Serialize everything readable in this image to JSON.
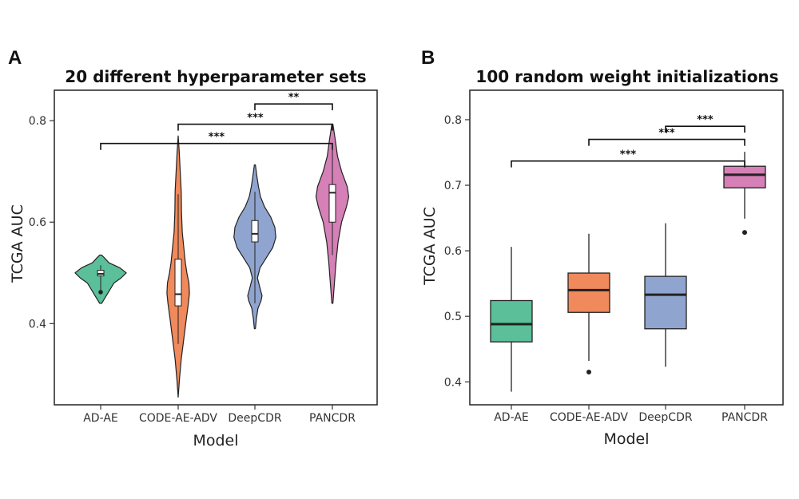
{
  "chart_data": [
    {
      "type": "violin",
      "panel_label": "A",
      "title": "20 different hyperparameter sets",
      "xlabel": "Model",
      "ylabel": "TCGA AUC",
      "ylim": [
        0.24,
        0.86
      ],
      "yticks": [
        0.4,
        0.6,
        0.8
      ],
      "ytick_labels": [
        "0.4",
        "0.6",
        "0.8"
      ],
      "categories": [
        "AD-AE",
        "CODE-AE-ADV",
        "DeepCDR",
        "PANCDR"
      ],
      "colors": [
        "#5BBF9A",
        "#F0895B",
        "#8FA4CF",
        "#D580B6"
      ],
      "groups": [
        {
          "name": "AD-AE",
          "violin_min": 0.44,
          "violin_max": 0.535,
          "density": [
            [
              0.44,
              0.04
            ],
            [
              0.45,
              0.16
            ],
            [
              0.46,
              0.28
            ],
            [
              0.47,
              0.4
            ],
            [
              0.48,
              0.52
            ],
            [
              0.49,
              0.8
            ],
            [
              0.5,
              1.0
            ],
            [
              0.51,
              0.75
            ],
            [
              0.52,
              0.32
            ],
            [
              0.53,
              0.14
            ],
            [
              0.535,
              0.04
            ]
          ],
          "box": {
            "q1": 0.494,
            "median": 0.498,
            "q3": 0.505,
            "whisker_low": 0.465,
            "whisker_high": 0.515
          },
          "outliers": [
            0.462
          ]
        },
        {
          "name": "CODE-AE-ADV",
          "violin_min": 0.255,
          "violin_max": 0.77,
          "density": [
            [
              0.255,
              0.0
            ],
            [
              0.29,
              0.05
            ],
            [
              0.33,
              0.12
            ],
            [
              0.37,
              0.22
            ],
            [
              0.41,
              0.32
            ],
            [
              0.44,
              0.4
            ],
            [
              0.46,
              0.44
            ],
            [
              0.48,
              0.42
            ],
            [
              0.5,
              0.34
            ],
            [
              0.52,
              0.28
            ],
            [
              0.55,
              0.22
            ],
            [
              0.58,
              0.16
            ],
            [
              0.62,
              0.13
            ],
            [
              0.66,
              0.12
            ],
            [
              0.7,
              0.08
            ],
            [
              0.74,
              0.04
            ],
            [
              0.77,
              0.0
            ]
          ],
          "box": {
            "q1": 0.435,
            "median": 0.458,
            "q3": 0.527,
            "whisker_low": 0.36,
            "whisker_high": 0.655
          },
          "outliers": []
        },
        {
          "name": "DeepCDR",
          "violin_min": 0.39,
          "violin_max": 0.713,
          "density": [
            [
              0.39,
              0.02
            ],
            [
              0.41,
              0.06
            ],
            [
              0.43,
              0.12
            ],
            [
              0.445,
              0.24
            ],
            [
              0.455,
              0.28
            ],
            [
              0.47,
              0.2
            ],
            [
              0.49,
              0.1
            ],
            [
              0.51,
              0.2
            ],
            [
              0.53,
              0.45
            ],
            [
              0.55,
              0.7
            ],
            [
              0.57,
              0.82
            ],
            [
              0.59,
              0.78
            ],
            [
              0.61,
              0.62
            ],
            [
              0.63,
              0.38
            ],
            [
              0.65,
              0.22
            ],
            [
              0.67,
              0.14
            ],
            [
              0.69,
              0.08
            ],
            [
              0.713,
              0.02
            ]
          ],
          "box": {
            "q1": 0.561,
            "median": 0.577,
            "q3": 0.603,
            "whisker_low": 0.44,
            "whisker_high": 0.66
          },
          "outliers": []
        },
        {
          "name": "PANCDR",
          "violin_min": 0.44,
          "violin_max": 0.793,
          "density": [
            [
              0.44,
              0.02
            ],
            [
              0.48,
              0.08
            ],
            [
              0.52,
              0.14
            ],
            [
              0.56,
              0.22
            ],
            [
              0.6,
              0.36
            ],
            [
              0.63,
              0.55
            ],
            [
              0.65,
              0.64
            ],
            [
              0.67,
              0.58
            ],
            [
              0.7,
              0.36
            ],
            [
              0.73,
              0.2
            ],
            [
              0.76,
              0.12
            ],
            [
              0.793,
              0.02
            ]
          ],
          "box": {
            "q1": 0.6,
            "median": 0.658,
            "q3": 0.674,
            "whisker_low": 0.535,
            "whisker_high": 0.75
          },
          "outliers": []
        }
      ],
      "comparisons": [
        {
          "from": "DeepCDR",
          "to": "PANCDR",
          "y": 0.833,
          "label": "**"
        },
        {
          "from": "CODE-AE-ADV",
          "to": "PANCDR",
          "y": 0.793,
          "label": "***"
        },
        {
          "from": "AD-AE",
          "to": "PANCDR",
          "y": 0.755,
          "label": "***"
        }
      ]
    },
    {
      "type": "box",
      "panel_label": "B",
      "title": "100 random weight initializations",
      "xlabel": "Model",
      "ylabel": "TCGA AUC",
      "ylim": [
        0.365,
        0.845
      ],
      "yticks": [
        0.4,
        0.5,
        0.6,
        0.7,
        0.8
      ],
      "ytick_labels": [
        "0.4",
        "0.5",
        "0.6",
        "0.7",
        "0.8"
      ],
      "categories": [
        "AD-AE",
        "CODE-AE-ADV",
        "DeepCDR",
        "PANCDR"
      ],
      "colors": [
        "#5BBF9A",
        "#F0895B",
        "#8FA4CF",
        "#D580B6"
      ],
      "groups": [
        {
          "name": "AD-AE",
          "q1": 0.461,
          "median": 0.488,
          "q3": 0.524,
          "whisker_low": 0.385,
          "whisker_high": 0.606,
          "outliers": []
        },
        {
          "name": "CODE-AE-ADV",
          "q1": 0.506,
          "median": 0.54,
          "q3": 0.566,
          "whisker_low": 0.432,
          "whisker_high": 0.626,
          "outliers": [
            0.415
          ]
        },
        {
          "name": "DeepCDR",
          "q1": 0.481,
          "median": 0.533,
          "q3": 0.561,
          "whisker_low": 0.423,
          "whisker_high": 0.642,
          "outliers": []
        },
        {
          "name": "PANCDR",
          "q1": 0.696,
          "median": 0.716,
          "q3": 0.729,
          "whisker_low": 0.649,
          "whisker_high": 0.751,
          "outliers": [
            0.628
          ]
        }
      ],
      "comparisons": [
        {
          "from": "DeepCDR",
          "to": "PANCDR",
          "y": 0.79,
          "label": "***"
        },
        {
          "from": "CODE-AE-ADV",
          "to": "PANCDR",
          "y": 0.77,
          "label": "***"
        },
        {
          "from": "AD-AE",
          "to": "PANCDR",
          "y": 0.737,
          "label": "***"
        }
      ]
    }
  ]
}
